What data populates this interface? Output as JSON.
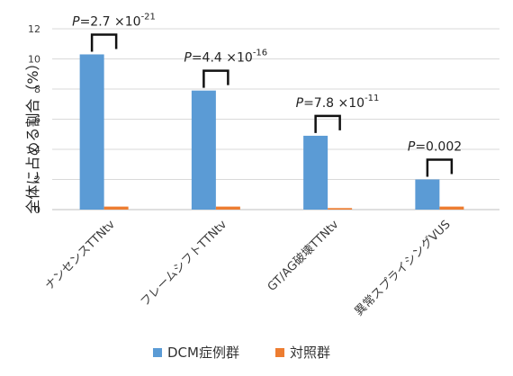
{
  "chart_data": {
    "type": "bar",
    "ylabel": "全体に占める割合（%）",
    "ylim": [
      0,
      12
    ],
    "yticks": [
      "0",
      "2",
      "4",
      "6",
      "8",
      "10",
      "12"
    ],
    "grid": true,
    "legend_position": "bottom",
    "categories": [
      "ナンセンスTTNtv",
      "フレームシフトTTNtv",
      "GT/AG破壊TTNtv",
      "異常スプライシングVUS"
    ],
    "series": [
      {
        "name": "DCM症例群",
        "color": "#5b9bd5",
        "values": [
          10.3,
          7.9,
          4.9,
          2.0
        ]
      },
      {
        "name": "対照群",
        "color": "#ed7d31",
        "values": [
          0.2,
          0.2,
          0.1,
          0.2
        ]
      }
    ],
    "annotations": [
      {
        "p_label": "P",
        "eq": "=2.7 ×10",
        "exp": "-21"
      },
      {
        "p_label": "P",
        "eq": "=4.4 ×10",
        "exp": "-16"
      },
      {
        "p_label": "P",
        "eq": "=7.8 ×10",
        "exp": "-11"
      },
      {
        "p_label": "P",
        "eq": "=0.002",
        "exp": ""
      }
    ]
  }
}
